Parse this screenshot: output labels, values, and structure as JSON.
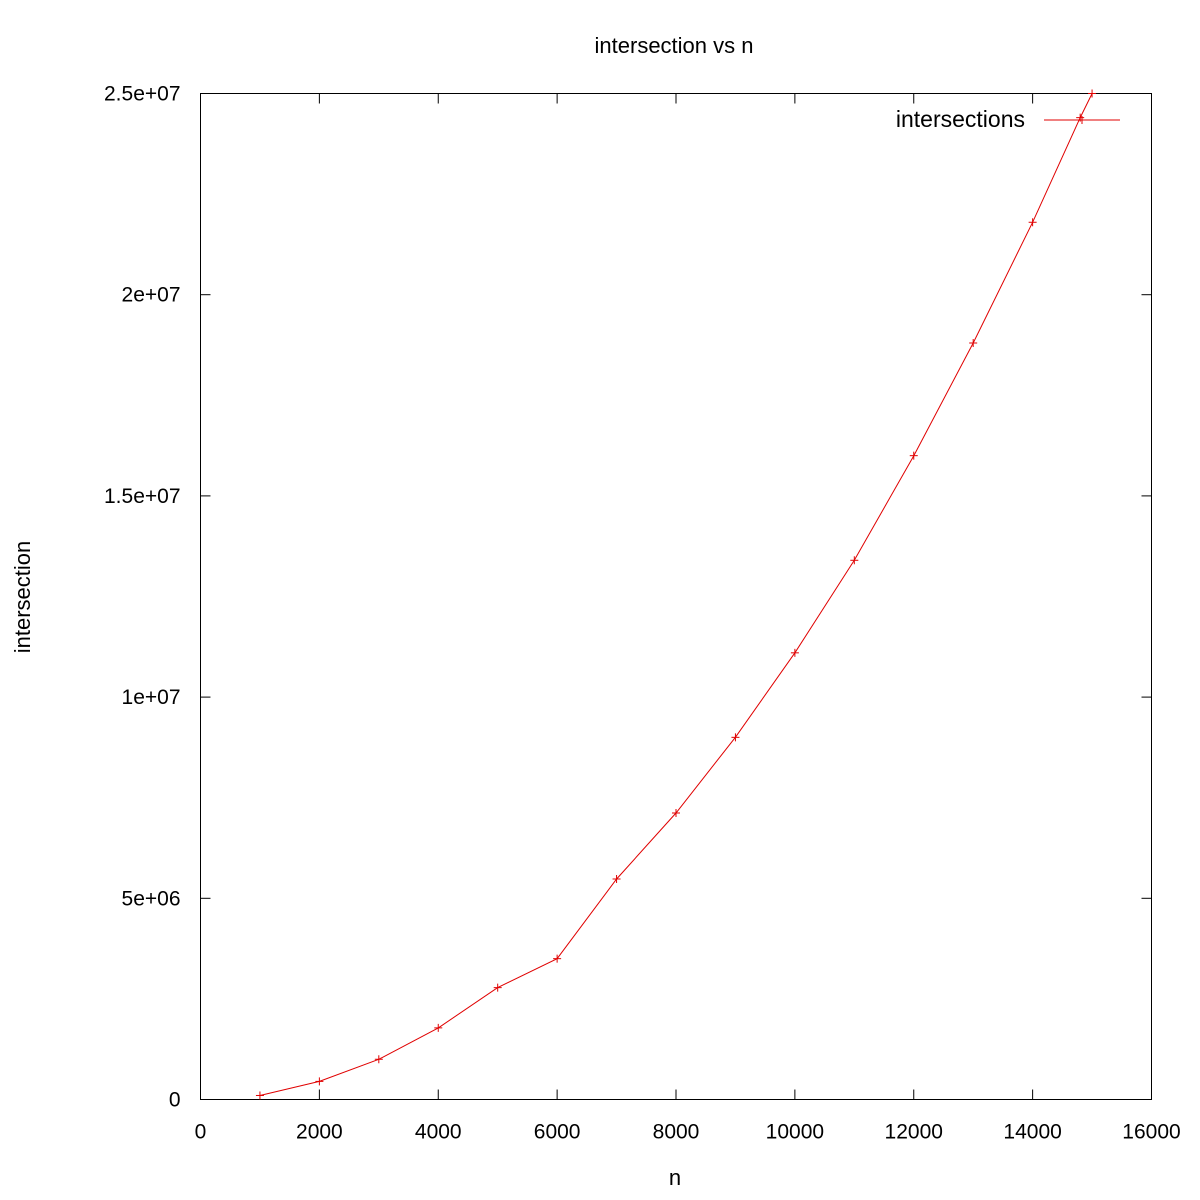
{
  "chart_data": {
    "type": "line",
    "title": "intersection vs n",
    "xlabel": "n",
    "ylabel": "intersection",
    "xlim": [
      0,
      16000
    ],
    "ylim": [
      0,
      25000000
    ],
    "x_ticks": [
      0,
      2000,
      4000,
      6000,
      8000,
      10000,
      12000,
      14000,
      16000
    ],
    "x_tick_labels": [
      "0",
      "2000",
      "4000",
      "6000",
      "8000",
      "10000",
      "12000",
      "14000",
      "16000"
    ],
    "y_ticks": [
      0,
      5000000,
      10000000,
      15000000,
      20000000,
      25000000
    ],
    "y_tick_labels": [
      "0",
      "5e+06",
      "1e+07",
      "1.5e+07",
      "2e+07",
      "2.5e+07"
    ],
    "grid": false,
    "legend_position": "top-right",
    "marker": "plus",
    "series": [
      {
        "name": "intersections",
        "color": "#e00000",
        "x": [
          1000,
          2000,
          3000,
          4000,
          5000,
          6000,
          7000,
          8000,
          9000,
          10000,
          11000,
          12000,
          13000,
          14000,
          14800,
          15000
        ],
        "y": [
          100000,
          450000,
          1000000,
          1780000,
          2780000,
          3500000,
          5480000,
          7120000,
          9000000,
          11100000,
          13400000,
          16000000,
          18800000,
          21800000,
          24400000,
          25000000
        ]
      }
    ]
  }
}
